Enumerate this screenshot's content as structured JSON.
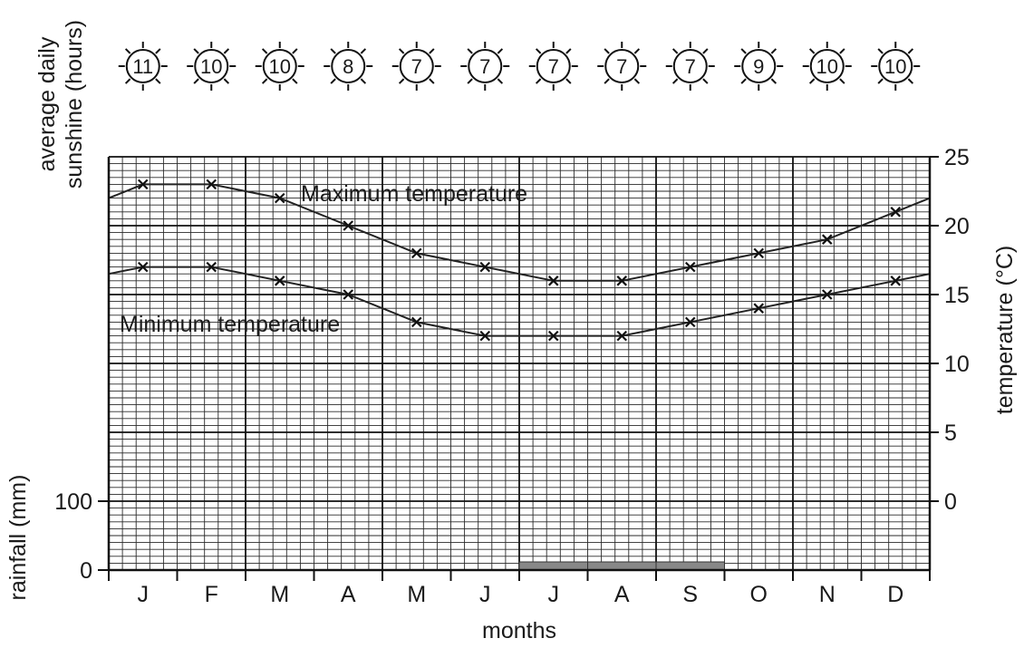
{
  "chart_data": {
    "type": "line",
    "categories": [
      "J",
      "F",
      "M",
      "A",
      "M",
      "J",
      "J",
      "A",
      "S",
      "O",
      "N",
      "D"
    ],
    "xlabel": "months",
    "sunshine": {
      "label": [
        "average daily",
        "sunshine (hours)"
      ],
      "values": [
        11,
        10,
        10,
        8,
        7,
        7,
        7,
        7,
        7,
        9,
        10,
        10
      ]
    },
    "temperature": {
      "ylabel": "temperature (°C)",
      "ylim": [
        -5,
        25
      ],
      "ticks": [
        "0",
        "5",
        "10",
        "15",
        "20",
        "25"
      ],
      "series": [
        {
          "name": "Maximum temperature",
          "values": [
            23,
            23,
            22,
            20,
            18,
            17,
            16,
            16,
            17,
            18,
            19,
            21
          ]
        },
        {
          "name": "Minimum temperature",
          "values": [
            17,
            17,
            16,
            15,
            13,
            12,
            12,
            12,
            13,
            14,
            15,
            16
          ]
        }
      ]
    },
    "rainfall": {
      "ylabel": "rainfall (mm)",
      "ticks": [
        "0",
        "100"
      ],
      "values": [
        0,
        0,
        0,
        0,
        0,
        0,
        1,
        1,
        1,
        0,
        0,
        0
      ]
    },
    "grid": true
  }
}
